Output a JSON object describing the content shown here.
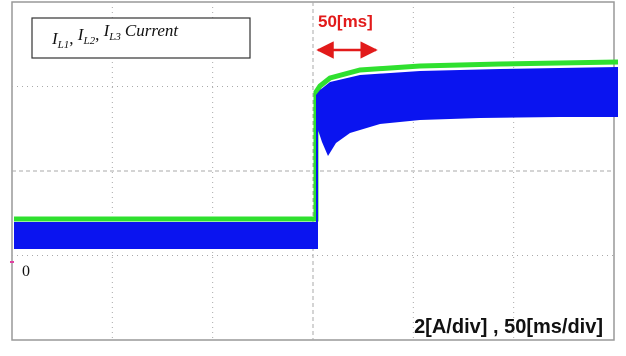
{
  "legend": {
    "items": [
      {
        "base": "I",
        "sub": "L1"
      },
      {
        "base": "I",
        "sub": "L2"
      },
      {
        "base": "I",
        "sub": "L3"
      }
    ],
    "separator": ", ",
    "suffix": "Current"
  },
  "annotation": "50[ms]",
  "zero_label": "0",
  "scale_label": "2[A/div] , 50[ms/div]"
}
